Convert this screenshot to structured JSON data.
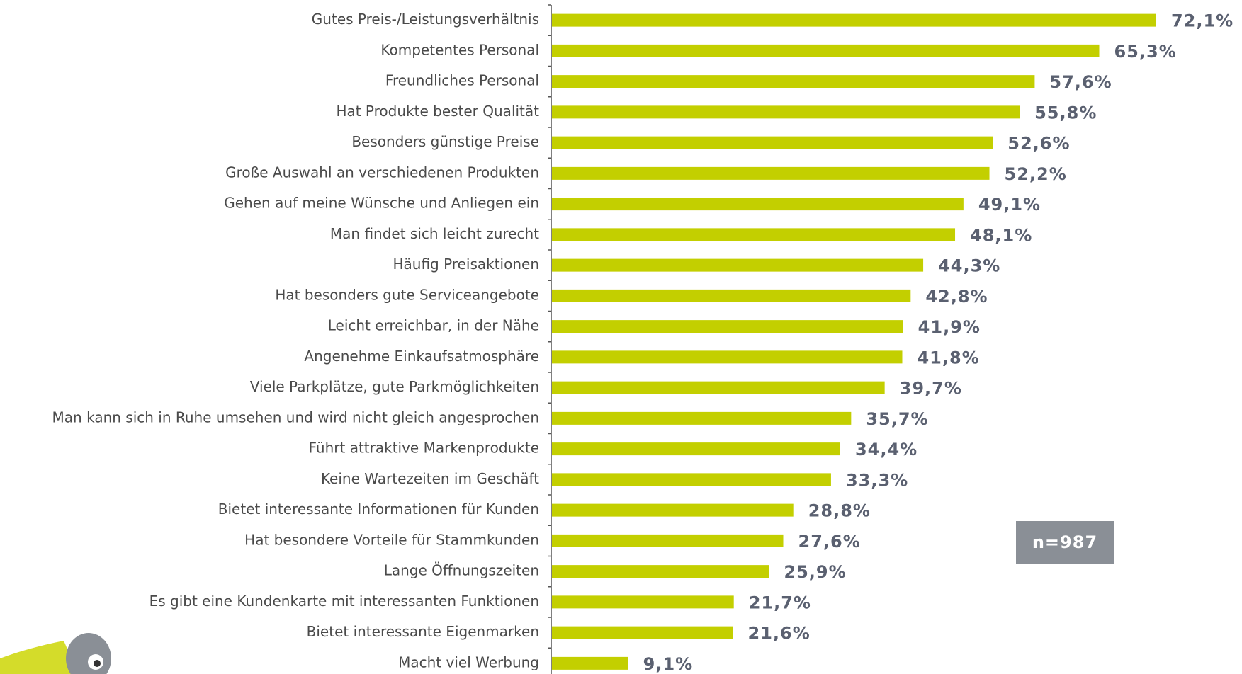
{
  "chart_data": {
    "type": "bar",
    "orientation": "horizontal",
    "color": "#c3cf00",
    "categories": [
      "Gutes Preis-/Leistungsverhältnis",
      "Kompetentes Personal",
      "Freundliches Personal",
      "Hat Produkte bester Qualität",
      "Besonders günstige Preise",
      "Große Auswahl an verschiedenen Produkten",
      "Gehen auf meine Wünsche und Anliegen ein",
      "Man findet sich leicht zurecht",
      "Häufig Preisaktionen",
      "Hat besonders gute Serviceangebote",
      "Leicht erreichbar, in der Nähe",
      "Angenehme Einkaufsatmosphäre",
      "Viele Parkplätze, gute Parkmöglichkeiten",
      "Man kann sich in Ruhe umsehen und wird nicht gleich angesprochen",
      "Führt attraktive Markenprodukte",
      "Keine Wartezeiten im Geschäft",
      "Bietet interessante Informationen für Kunden",
      "Hat besondere Vorteile für Stammkunden",
      "Lange Öffnungszeiten",
      "Es gibt eine Kundenkarte mit interessanten Funktionen",
      "Bietet interessante Eigenmarken",
      "Macht viel Werbung"
    ],
    "values": [
      72.1,
      65.3,
      57.6,
      55.8,
      52.6,
      52.2,
      49.1,
      48.1,
      44.3,
      42.8,
      41.9,
      41.8,
      39.7,
      35.7,
      34.4,
      33.3,
      28.8,
      27.6,
      25.9,
      21.7,
      21.6,
      9.1
    ],
    "value_labels": [
      "72,1%",
      "65,3%",
      "57,6%",
      "55,8%",
      "52,6%",
      "52,2%",
      "49,1%",
      "48,1%",
      "44,3%",
      "42,8%",
      "41,9%",
      "41,8%",
      "39,7%",
      "35,7%",
      "34,4%",
      "33,3%",
      "28,8%",
      "27,6%",
      "25,9%",
      "21,7%",
      "21,6%",
      "9,1%"
    ],
    "annotation": "n=987"
  }
}
